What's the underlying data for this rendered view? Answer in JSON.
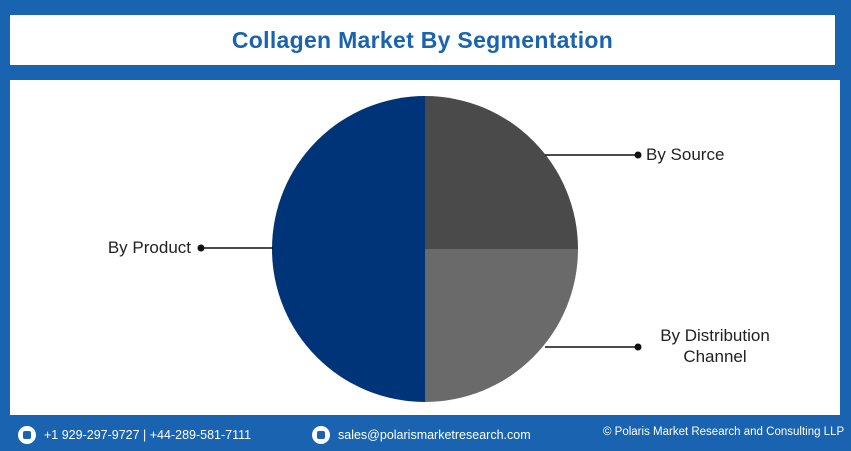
{
  "chart_data": {
    "type": "pie",
    "title": "Collagen Market By Segmentation",
    "categories": [
      "By Source",
      "By Distribution Channel",
      "By Product"
    ],
    "values": [
      25,
      25,
      50
    ],
    "colors": [
      "#4a4a4a",
      "#6a6a6a",
      "#003478"
    ]
  },
  "footer": {
    "phone": "+1 929-297-9727 | +44-289-581-7111",
    "email": "sales@polarismarketresearch.com",
    "copyright": "© Polaris Market Research and Consulting LLP"
  }
}
